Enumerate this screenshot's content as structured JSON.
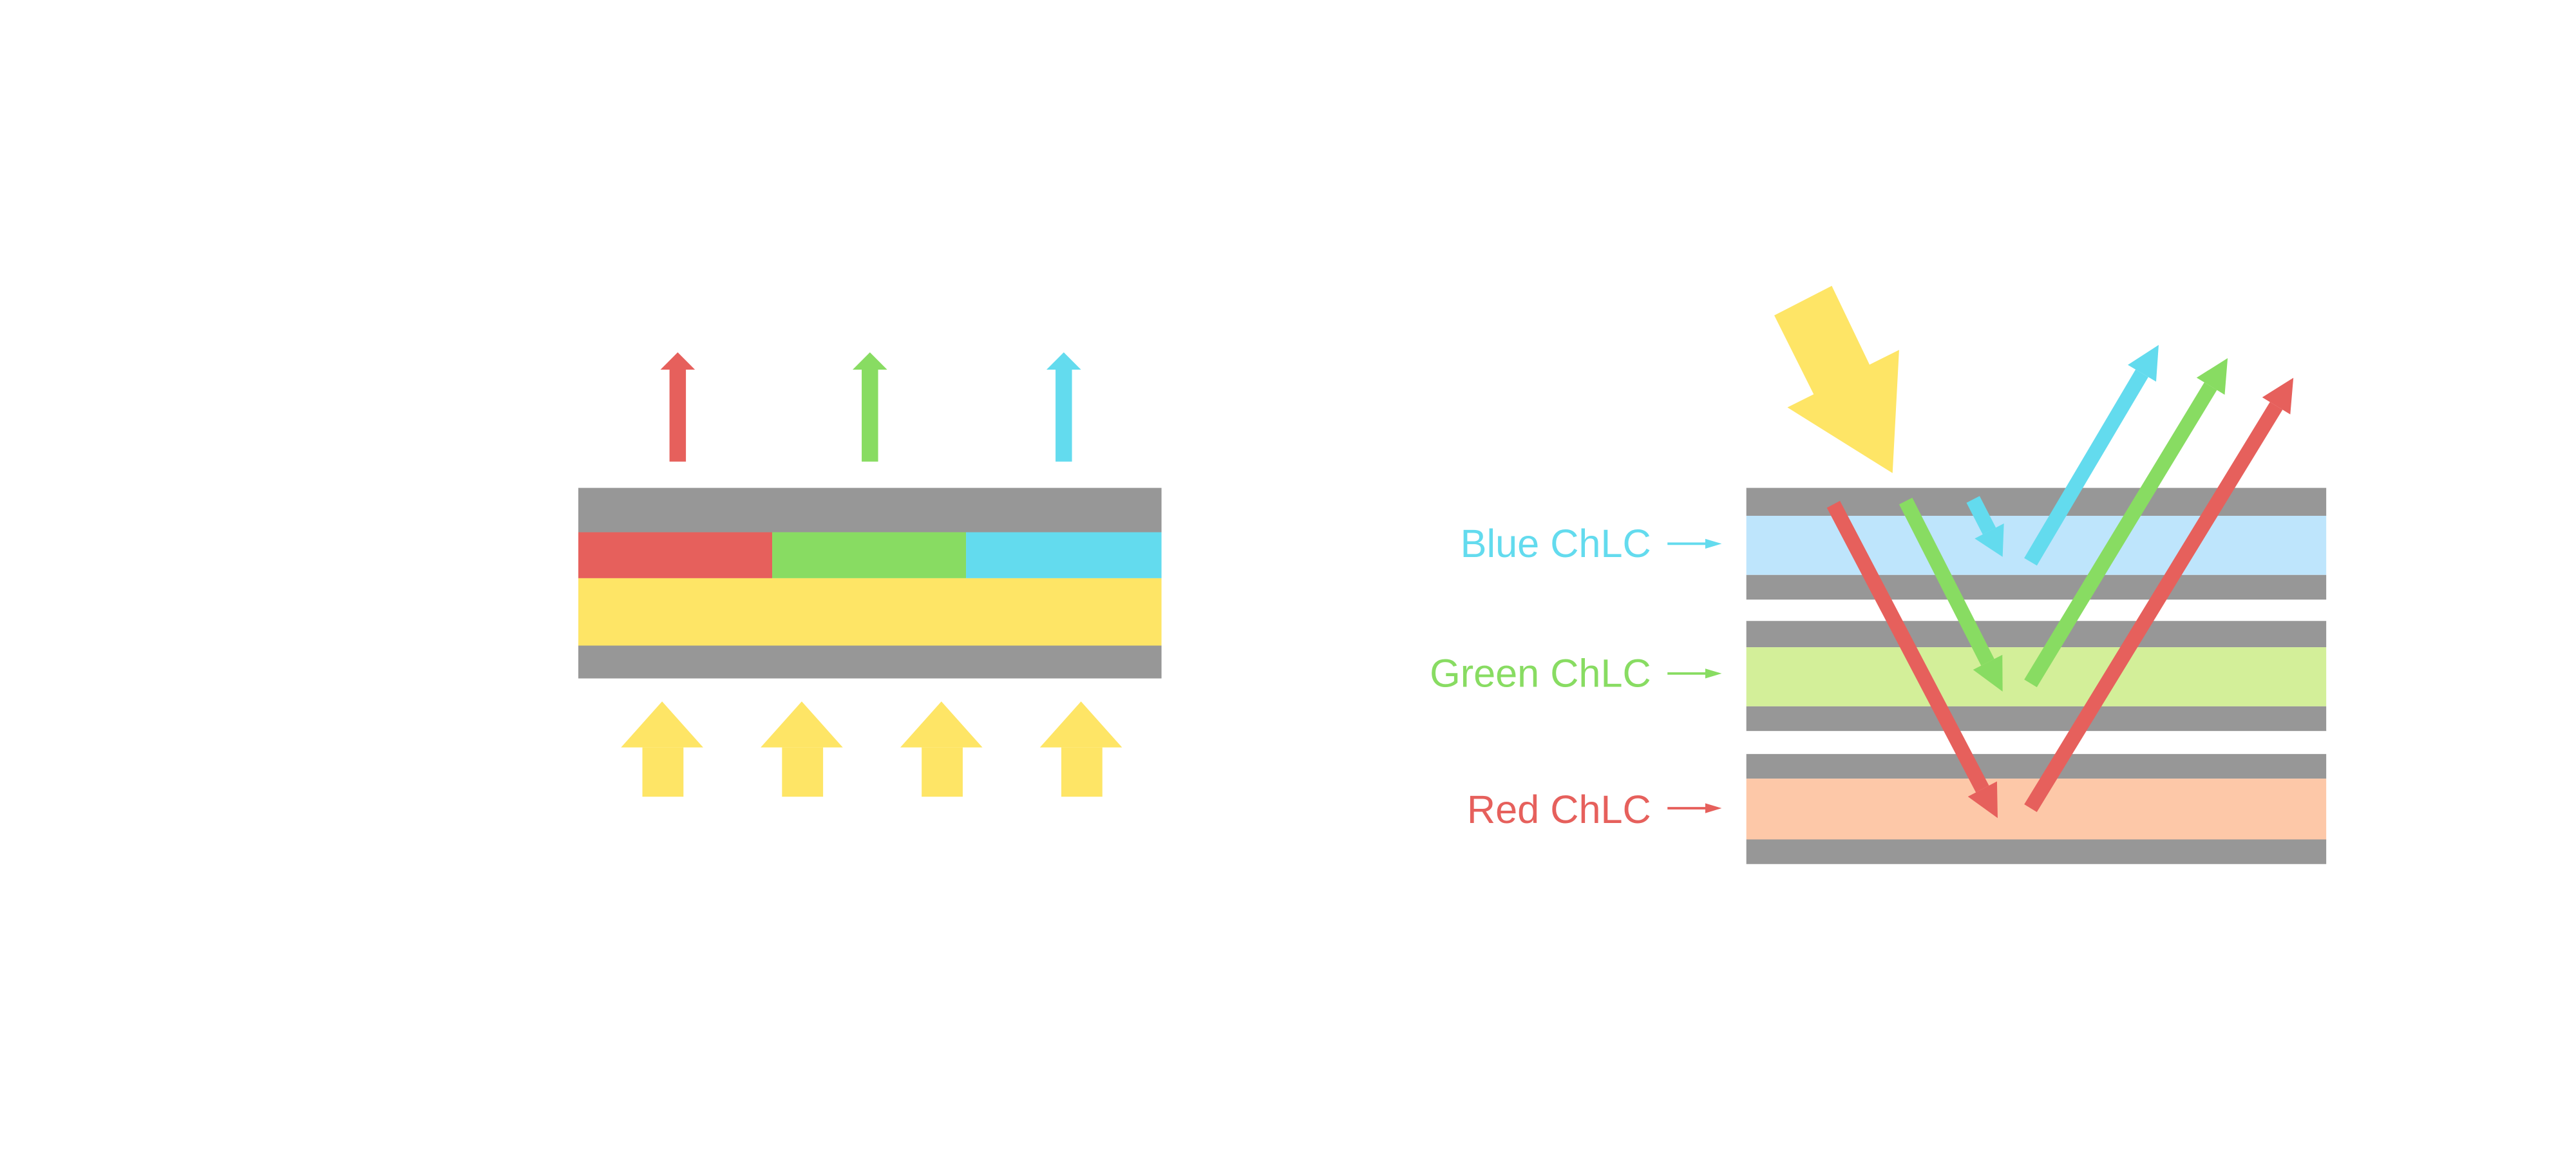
{
  "colors": {
    "red": "#E6605C",
    "green": "#88DC62",
    "cyan": "#63DBEE",
    "yellow": "#FEE566",
    "gray": "#979797",
    "blue_layer": "#BEE5FC",
    "green_layer": "#D3EF99",
    "red_layer": "#FDC8A8"
  },
  "right_diagram": {
    "labels": {
      "blue": "Blue ChLC",
      "green": "Green ChLC",
      "red": "Red ChLC"
    }
  }
}
